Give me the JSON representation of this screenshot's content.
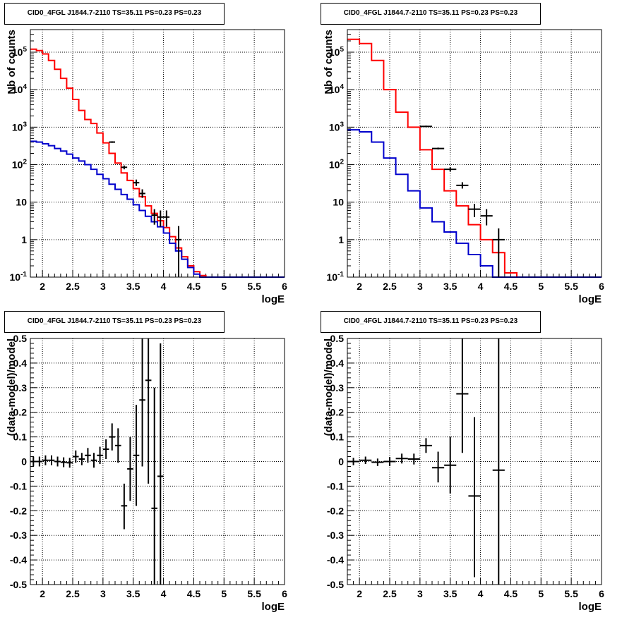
{
  "titles": [
    "CID0_4FGL J1844.7-2110 TS=35.11 PS=0.23 PS=0.23",
    "CID0_4FGL J1844.7-2110 TS=35.11 PS=0.23 PS=0.23",
    "CID0_4FGL J1844.7-2110 TS=35.11 PS=0.23 PS=0.23",
    "CID0_4FGL J1844.7-2110 TS=35.11 PS=0.23 PS=0.23"
  ],
  "colors": {
    "total_model": "#ff0000",
    "component_model": "#0000cc",
    "data": "#000000",
    "grid": "#000000"
  },
  "chart_data": [
    {
      "type": "histogram",
      "title": "CID0_4FGL J1844.7-2110 TS=35.11 PS=0.23 PS=0.23",
      "xlabel": "logE",
      "ylabel": "Nb of counts",
      "xlim": [
        1.8,
        6.0
      ],
      "ylim": [
        0.1,
        400000
      ],
      "yscale": "log",
      "grid": true,
      "x_ticks": [
        "2",
        "2.5",
        "3",
        "3.5",
        "4",
        "4.5",
        "5",
        "5.5",
        "6"
      ],
      "y_ticks": [
        "10^-1",
        "1",
        "10",
        "10^2",
        "10^3",
        "10^4",
        "10^5"
      ],
      "bin_edges": [
        1.8,
        1.9,
        2.0,
        2.1,
        2.2,
        2.3,
        2.4,
        2.5,
        2.6,
        2.7,
        2.8,
        2.9,
        3.0,
        3.1,
        3.2,
        3.3,
        3.4,
        3.5,
        3.6,
        3.7,
        3.8,
        3.9,
        4.0,
        4.1,
        4.2,
        4.3,
        4.4,
        4.5,
        4.6,
        4.7,
        4.8,
        4.9,
        5.0,
        5.1,
        5.2,
        5.3,
        5.4,
        5.5,
        5.6,
        5.7,
        5.8,
        5.9,
        6.0
      ],
      "series": [
        {
          "name": "",
          "style": "step",
          "color": "#ff0000",
          "values": [
            120000,
            110000,
            90000,
            60000,
            35000,
            20000,
            11000,
            5500,
            2800,
            1600,
            1250,
            700,
            380,
            200,
            110,
            60,
            38,
            23,
            14,
            8,
            5,
            3.2,
            2.1,
            1.2,
            0.6,
            0.35,
            0.2,
            0.14,
            0.11,
            0.1,
            0.1,
            0.1,
            0.1,
            0.1,
            0.1,
            0.1,
            0.1,
            0.1,
            0.1,
            0.1,
            0.1,
            0.1
          ]
        },
        {
          "name": "",
          "style": "step",
          "color": "#0000cc",
          "values": [
            420,
            400,
            360,
            320,
            270,
            230,
            190,
            150,
            125,
            100,
            75,
            55,
            42,
            30,
            22,
            16,
            12,
            8.5,
            6,
            4.2,
            3,
            2.2,
            1.5,
            0.8,
            0.5,
            0.3,
            0.18,
            0.12,
            0.1,
            0.1,
            0.1,
            0.1,
            0.1,
            0.1,
            0.1,
            0.1,
            0.1,
            0.1,
            0.1,
            0.1,
            0.1,
            0.1
          ]
        },
        {
          "name": "",
          "style": "errorbars",
          "color": "#000000",
          "points": [
            {
              "x": 3.15,
              "y": 400,
              "xerr": 0.05,
              "ylo": 380,
              "yhi": 420
            },
            {
              "x": 3.35,
              "y": 85,
              "xerr": 0.05,
              "ylo": 75,
              "yhi": 95
            },
            {
              "x": 3.55,
              "y": 33,
              "xerr": 0.05,
              "ylo": 27,
              "yhi": 40
            },
            {
              "x": 3.65,
              "y": 17,
              "xerr": 0.05,
              "ylo": 13,
              "yhi": 22
            },
            {
              "x": 3.85,
              "y": 4.5,
              "xerr": 0.05,
              "ylo": 2.5,
              "yhi": 6.5
            },
            {
              "x": 3.95,
              "y": 4,
              "xerr": 0.05,
              "ylo": 2.2,
              "yhi": 6
            },
            {
              "x": 4.05,
              "y": 4,
              "xerr": 0.05,
              "ylo": 2.2,
              "yhi": 6
            },
            {
              "x": 4.25,
              "y": 1,
              "xerr": 0.05,
              "ylo": 0.1,
              "yhi": 2.3
            }
          ]
        }
      ]
    },
    {
      "type": "histogram",
      "title": "CID0_4FGL J1844.7-2110 TS=35.11 PS=0.23 PS=0.23",
      "xlabel": "logE",
      "ylabel": "Nb of counts",
      "xlim": [
        1.8,
        6.0
      ],
      "ylim": [
        0.1,
        400000
      ],
      "yscale": "log",
      "grid": true,
      "x_ticks": [
        "2",
        "2.5",
        "3",
        "3.5",
        "4",
        "4.5",
        "5",
        "5.5",
        "6"
      ],
      "y_ticks": [
        "10^-1",
        "1",
        "10",
        "10^2",
        "10^3",
        "10^4",
        "10^5"
      ],
      "bin_edges": [
        1.8,
        2.0,
        2.2,
        2.4,
        2.6,
        2.8,
        3.0,
        3.2,
        3.4,
        3.6,
        3.8,
        4.0,
        4.2,
        4.4,
        4.6,
        4.8,
        5.0,
        5.2,
        5.4,
        5.6,
        5.8,
        6.0
      ],
      "series": [
        {
          "name": "",
          "style": "step",
          "color": "#ff0000",
          "values": [
            220000,
            170000,
            60000,
            10000,
            2500,
            1000,
            250,
            75,
            20,
            8,
            2.5,
            1,
            0.45,
            0.13,
            0.1,
            0.1,
            0.1,
            0.1,
            0.1,
            0.1,
            0.1
          ]
        },
        {
          "name": "",
          "style": "step",
          "color": "#0000cc",
          "values": [
            850,
            750,
            400,
            150,
            55,
            20,
            7,
            3,
            1.6,
            0.8,
            0.4,
            0.2,
            0.1,
            0.1,
            0.1,
            0.1,
            0.1,
            0.1,
            0.1,
            0.1,
            0.1
          ]
        },
        {
          "name": "",
          "style": "errorbars",
          "color": "#000000",
          "points": [
            {
              "x": 3.1,
              "y": 1050,
              "xerr": 0.1,
              "ylo": 1000,
              "yhi": 1100
            },
            {
              "x": 3.3,
              "y": 270,
              "xerr": 0.1,
              "ylo": 255,
              "yhi": 285
            },
            {
              "x": 3.5,
              "y": 75,
              "xerr": 0.1,
              "ylo": 66,
              "yhi": 85
            },
            {
              "x": 3.7,
              "y": 28,
              "xerr": 0.1,
              "ylo": 23,
              "yhi": 34
            },
            {
              "x": 3.9,
              "y": 6.5,
              "xerr": 0.1,
              "ylo": 4,
              "yhi": 9
            },
            {
              "x": 4.1,
              "y": 4.3,
              "xerr": 0.1,
              "ylo": 2.4,
              "yhi": 6.5
            },
            {
              "x": 4.3,
              "y": 1,
              "xerr": 0.1,
              "ylo": 0.1,
              "yhi": 2
            }
          ]
        }
      ]
    },
    {
      "type": "errorbars",
      "title": "CID0_4FGL J1844.7-2110 TS=35.11 PS=0.23 PS=0.23",
      "xlabel": "logE",
      "ylabel": "(data-model)/model",
      "xlim": [
        1.8,
        6.0
      ],
      "ylim": [
        -0.5,
        0.5
      ],
      "grid": true,
      "x_ticks": [
        "2",
        "2.5",
        "3",
        "3.5",
        "4",
        "4.5",
        "5",
        "5.5",
        "6"
      ],
      "y_ticks": [
        "-0.5",
        "-0.4",
        "-0.3",
        "-0.2",
        "-0.1",
        "0",
        "0.1",
        "0.2",
        "0.3",
        "0.4",
        "0.5"
      ],
      "series": [
        {
          "name": "",
          "color": "#000000",
          "xerr": 0.05,
          "points": [
            {
              "x": 1.85,
              "y": 0.0,
              "ylo": -0.02,
              "yhi": 0.02
            },
            {
              "x": 1.95,
              "y": 0.0,
              "ylo": -0.02,
              "yhi": 0.02
            },
            {
              "x": 2.05,
              "y": 0.005,
              "ylo": -0.015,
              "yhi": 0.025
            },
            {
              "x": 2.15,
              "y": 0.005,
              "ylo": -0.015,
              "yhi": 0.025
            },
            {
              "x": 2.25,
              "y": 0.0,
              "ylo": -0.02,
              "yhi": 0.02
            },
            {
              "x": 2.35,
              "y": -0.003,
              "ylo": -0.023,
              "yhi": 0.017
            },
            {
              "x": 2.45,
              "y": -0.005,
              "ylo": -0.025,
              "yhi": 0.015
            },
            {
              "x": 2.55,
              "y": 0.02,
              "ylo": -0.005,
              "yhi": 0.045
            },
            {
              "x": 2.65,
              "y": 0.01,
              "ylo": -0.015,
              "yhi": 0.035
            },
            {
              "x": 2.75,
              "y": 0.025,
              "ylo": -0.005,
              "yhi": 0.055
            },
            {
              "x": 2.85,
              "y": 0.005,
              "ylo": -0.025,
              "yhi": 0.035
            },
            {
              "x": 2.95,
              "y": 0.025,
              "ylo": -0.01,
              "yhi": 0.06
            },
            {
              "x": 3.05,
              "y": 0.05,
              "ylo": 0.01,
              "yhi": 0.09
            },
            {
              "x": 3.15,
              "y": 0.1,
              "ylo": 0.045,
              "yhi": 0.155
            },
            {
              "x": 3.25,
              "y": 0.065,
              "ylo": -0.005,
              "yhi": 0.135
            },
            {
              "x": 3.35,
              "y": -0.18,
              "ylo": -0.275,
              "yhi": -0.09
            },
            {
              "x": 3.45,
              "y": -0.03,
              "ylo": -0.16,
              "yhi": 0.1
            },
            {
              "x": 3.55,
              "y": 0.025,
              "ylo": -0.18,
              "yhi": 0.23
            },
            {
              "x": 3.65,
              "y": 0.25,
              "ylo": -0.02,
              "yhi": 0.5
            },
            {
              "x": 3.75,
              "y": 0.33,
              "ylo": -0.09,
              "yhi": 0.5
            },
            {
              "x": 3.85,
              "y": -0.19,
              "ylo": -0.5,
              "yhi": 0.3
            },
            {
              "x": 3.95,
              "y": -0.06,
              "ylo": -0.5,
              "yhi": 0.48
            }
          ]
        }
      ]
    },
    {
      "type": "errorbars",
      "title": "CID0_4FGL J1844.7-2110 TS=35.11 PS=0.23 PS=0.23",
      "xlabel": "logE",
      "ylabel": "(data-model)/model",
      "xlim": [
        1.8,
        6.0
      ],
      "ylim": [
        -0.5,
        0.5
      ],
      "grid": true,
      "x_ticks": [
        "2",
        "2.5",
        "3",
        "3.5",
        "4",
        "4.5",
        "5",
        "5.5",
        "6"
      ],
      "y_ticks": [
        "-0.5",
        "-0.4",
        "-0.3",
        "-0.2",
        "-0.1",
        "0",
        "0.1",
        "0.2",
        "0.3",
        "0.4",
        "0.5"
      ],
      "series": [
        {
          "name": "",
          "color": "#000000",
          "xerr": 0.1,
          "points": [
            {
              "x": 1.9,
              "y": 0.0,
              "ylo": -0.015,
              "yhi": 0.015
            },
            {
              "x": 2.1,
              "y": 0.005,
              "ylo": -0.01,
              "yhi": 0.02
            },
            {
              "x": 2.3,
              "y": -0.003,
              "ylo": -0.018,
              "yhi": 0.012
            },
            {
              "x": 2.5,
              "y": 0.0,
              "ylo": -0.018,
              "yhi": 0.018
            },
            {
              "x": 2.7,
              "y": 0.012,
              "ylo": -0.008,
              "yhi": 0.032
            },
            {
              "x": 2.9,
              "y": 0.01,
              "ylo": -0.012,
              "yhi": 0.032
            },
            {
              "x": 3.1,
              "y": 0.065,
              "ylo": 0.035,
              "yhi": 0.095
            },
            {
              "x": 3.3,
              "y": -0.025,
              "ylo": -0.085,
              "yhi": 0.04
            },
            {
              "x": 3.5,
              "y": -0.015,
              "ylo": -0.13,
              "yhi": 0.1
            },
            {
              "x": 3.7,
              "y": 0.275,
              "ylo": 0.035,
              "yhi": 0.5
            },
            {
              "x": 3.9,
              "y": -0.14,
              "ylo": -0.47,
              "yhi": 0.18
            },
            {
              "x": 4.3,
              "y": -0.035,
              "ylo": -0.5,
              "yhi": 0.5
            }
          ]
        }
      ]
    }
  ]
}
